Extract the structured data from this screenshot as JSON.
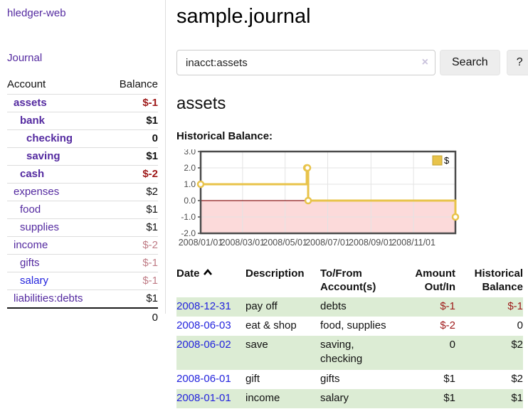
{
  "app": {
    "title": "hledger-web"
  },
  "sidebar": {
    "journal_link": "Journal",
    "accounts_table": {
      "account_header": "Account",
      "balance_header": "Balance",
      "rows": [
        {
          "name": "assets",
          "balance": "$-1",
          "level": 1,
          "matched": true,
          "balance_color": "neg-strong"
        },
        {
          "name": "bank",
          "balance": "$1",
          "level": 2,
          "matched": true,
          "balance_color": ""
        },
        {
          "name": "checking",
          "balance": "0",
          "level": 3,
          "matched": true,
          "balance_color": ""
        },
        {
          "name": "saving",
          "balance": "$1",
          "level": 3,
          "matched": true,
          "balance_color": ""
        },
        {
          "name": "cash",
          "balance": "$-2",
          "level": 2,
          "matched": true,
          "balance_color": "neg-strong"
        },
        {
          "name": "expenses",
          "balance": "$2",
          "level": 1,
          "matched": false,
          "balance_color": ""
        },
        {
          "name": "food",
          "balance": "$1",
          "level": 2,
          "matched": false,
          "balance_color": ""
        },
        {
          "name": "supplies",
          "balance": "$1",
          "level": 2,
          "matched": false,
          "balance_color": ""
        },
        {
          "name": "income",
          "balance": "$-2",
          "level": 1,
          "matched": false,
          "balance_color": "neg-soft"
        },
        {
          "name": "gifts",
          "balance": "$-1",
          "level": 2,
          "matched": false,
          "balance_color": "neg-soft"
        },
        {
          "name": "salary",
          "balance": "$-1",
          "level": 2,
          "matched": false,
          "balance_color": "neg-soft",
          "unvisited": true
        },
        {
          "name": "liabilities:debts",
          "balance": "$1",
          "level": 1,
          "matched": false,
          "balance_color": ""
        }
      ],
      "total": "0"
    }
  },
  "header": {
    "title": "sample.journal"
  },
  "search": {
    "value": "inacct:assets",
    "clear_icon": "×",
    "button_label": "Search",
    "help_label": "?"
  },
  "account_page": {
    "title": "assets",
    "chart_label": "Historical Balance:"
  },
  "chart_data": {
    "type": "line",
    "step": true,
    "legend": [
      {
        "label": "$",
        "color": "#e8c34a"
      }
    ],
    "legend_position": "top-right",
    "grid": true,
    "x_range": [
      "2008-01-01",
      "2008-12-31"
    ],
    "ylim": [
      -2.0,
      3.0
    ],
    "points": [
      {
        "x": "2008-01-01",
        "y": 1
      },
      {
        "x": "2008-06-01",
        "y": 2
      },
      {
        "x": "2008-06-02",
        "y": 2
      },
      {
        "x": "2008-06-03",
        "y": 0
      },
      {
        "x": "2008-12-31",
        "y": -1
      }
    ],
    "y_ticks": [
      {
        "v": 3,
        "label": "3.0"
      },
      {
        "v": 2,
        "label": "2.0"
      },
      {
        "v": 1,
        "label": "1.0"
      },
      {
        "v": 0,
        "label": "0.0"
      },
      {
        "v": -1,
        "label": "-1.0"
      },
      {
        "v": -2,
        "label": "-2.0"
      }
    ],
    "x_ticks": [
      {
        "x": "2008-01-01",
        "label": "2008/01/01"
      },
      {
        "x": "2008-03-01",
        "label": "2008/03/01"
      },
      {
        "x": "2008-05-01",
        "label": "2008/05/01"
      },
      {
        "x": "2008-07-01",
        "label": "2008/07/01"
      },
      {
        "x": "2008-09-01",
        "label": "2008/09/01"
      },
      {
        "x": "2008-11-01",
        "label": "2008/11/01"
      }
    ],
    "line_color": "#e8c34a",
    "marker_fill": "#ffffff",
    "zero_line_color": "#8b1a1a",
    "negative_fill": "#fcdada",
    "gridline_color": "#e3e3e3",
    "border_color": "#4a4a4a",
    "tick_text_color": "#4d4d4d"
  },
  "register_table": {
    "headers": [
      {
        "label": "Date",
        "sort": "asc",
        "align": "left"
      },
      {
        "label": "Description",
        "align": "left"
      },
      {
        "label": "To/From Account(s)",
        "align": "left"
      },
      {
        "label": "Amount Out/In",
        "align": "right"
      },
      {
        "label": "Historical Balance",
        "align": "right"
      }
    ],
    "rows": [
      {
        "date": "2008-12-31",
        "description": "pay off",
        "accounts": "debts",
        "amount": "$-1",
        "amount_neg": true,
        "balance": "$-1",
        "balance_neg": true
      },
      {
        "date": "2008-06-03",
        "description": "eat & shop",
        "accounts": "food, supplies",
        "amount": "$-2",
        "amount_neg": true,
        "balance": "0",
        "balance_neg": false
      },
      {
        "date": "2008-06-02",
        "description": "save",
        "accounts": "saving, checking",
        "amount": "0",
        "amount_neg": false,
        "balance": "$2",
        "balance_neg": false
      },
      {
        "date": "2008-06-01",
        "description": "gift",
        "accounts": "gifts",
        "amount": "$1",
        "amount_neg": false,
        "balance": "$2",
        "balance_neg": false
      },
      {
        "date": "2008-01-01",
        "description": "income",
        "accounts": "salary",
        "amount": "$1",
        "amount_neg": false,
        "balance": "$1",
        "balance_neg": false
      }
    ]
  },
  "colors": {
    "link_purple": "#542aa0",
    "link_blue": "#2424dd",
    "negative_strong": "#9e1919",
    "negative_soft": "#bf7b85",
    "row_stripe_green": "#dcecd4",
    "chart_line_gold": "#e8c34a",
    "chart_negative_pink": "#fcdada",
    "chart_zero_red": "#8b1a1a"
  }
}
